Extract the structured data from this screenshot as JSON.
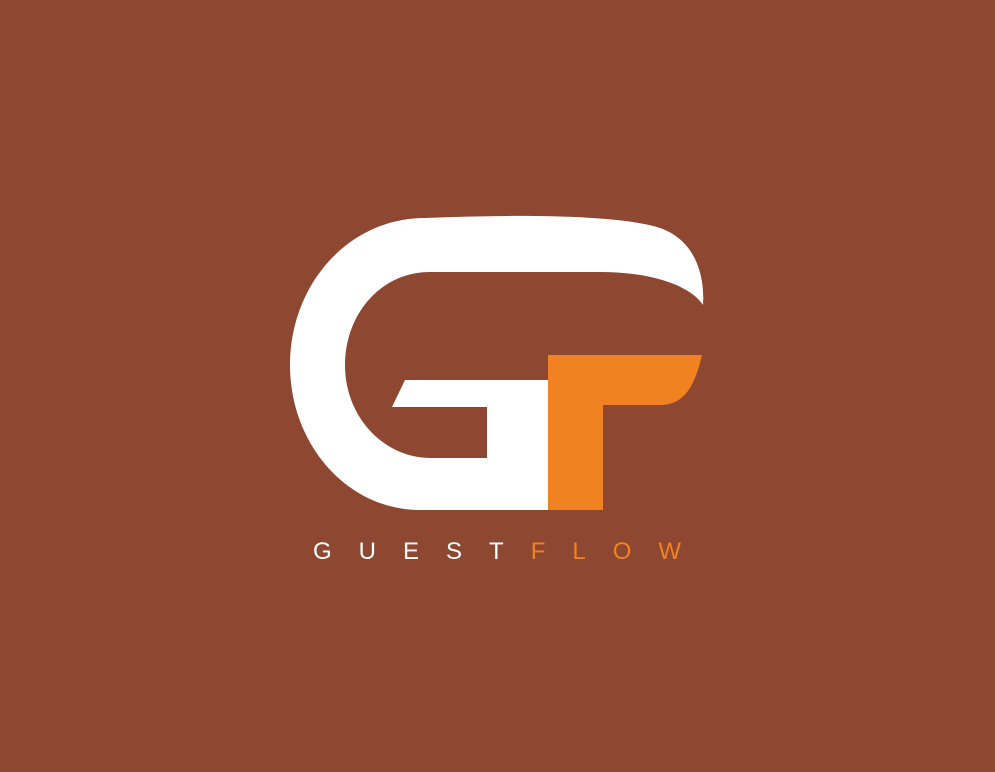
{
  "logo": {
    "text_primary": "GUEST",
    "text_accent": "FLOW"
  }
}
